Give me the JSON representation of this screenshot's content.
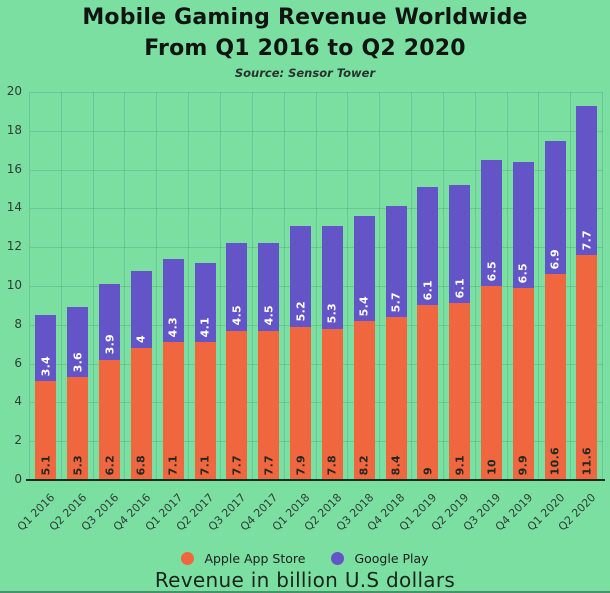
{
  "header": {
    "title_line1": "Mobile Gaming Revenue Worldwide",
    "title_line2": "From Q1 2016 to Q2 2020",
    "subtitle": "Source: Sensor Tower"
  },
  "caption": "Revenue in billion U.S dollars",
  "colors": {
    "background": "#7BDFA2",
    "apple": "#F0663E",
    "google": "#6355C8",
    "grid_line": "rgba(16,82,52,0.16)",
    "axis_line": "#1D2B24",
    "tick_text": "#2F3D35",
    "bar_label_dark": "#1E2922",
    "bar_label_light": "#FFFFFF"
  },
  "legend": {
    "items": [
      {
        "label": "Apple App Store",
        "color": "#F0663E"
      },
      {
        "label": "Google Play",
        "color": "#6355C8"
      }
    ]
  },
  "chart_data": {
    "type": "bar",
    "stacked": true,
    "title": "Mobile Gaming Revenue Worldwide From Q1 2016 to Q2 2020",
    "subtitle": "Source: Sensor Tower",
    "xlabel": "",
    "ylabel": "Revenue in billion U.S dollars",
    "ylim": [
      0,
      20
    ],
    "ytick_step": 2,
    "grid": true,
    "legend_position": "bottom",
    "categories": [
      "Q1 2016",
      "Q2 2016",
      "Q3 2016",
      "Q4 2016",
      "Q1 2017",
      "Q2 2017",
      "Q3 2017",
      "Q4 2017",
      "Q1 2018",
      "Q2 2018",
      "Q3 2018",
      "Q4 2018",
      "Q1 2019",
      "Q2 2019",
      "Q3 2019",
      "Q4 2019",
      "Q1 2020",
      "Q2 2020"
    ],
    "series": [
      {
        "name": "Apple App Store",
        "color": "#F0663E",
        "label_color": "#1E2922",
        "values": [
          5.1,
          5.3,
          6.2,
          6.8,
          7.1,
          7.1,
          7.7,
          7.7,
          7.9,
          7.8,
          8.2,
          8.4,
          9,
          9.1,
          10,
          9.9,
          10.6,
          11.6
        ]
      },
      {
        "name": "Google Play",
        "color": "#6355C8",
        "label_color": "#FFFFFF",
        "values": [
          3.4,
          3.6,
          3.9,
          4,
          4.3,
          4.1,
          4.5,
          4.5,
          5.2,
          5.3,
          5.4,
          5.7,
          6.1,
          6.1,
          6.5,
          6.5,
          6.9,
          7.7
        ]
      }
    ]
  }
}
